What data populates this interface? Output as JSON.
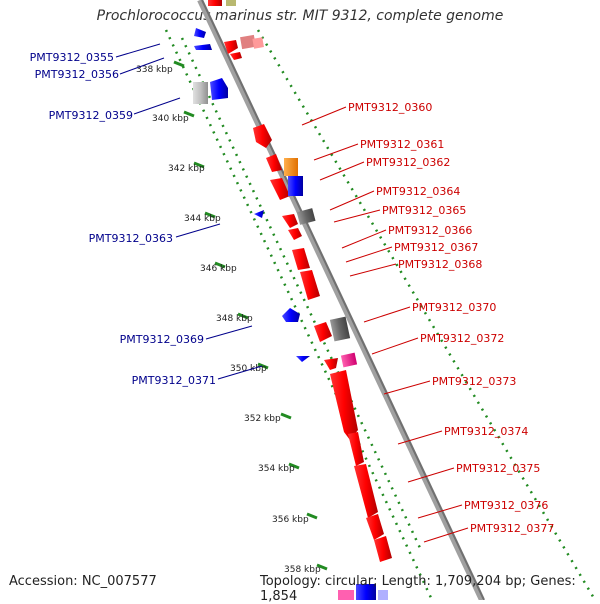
{
  "title": "Prochlorococcus marinus str. MIT 9312, complete genome",
  "footer": {
    "accession": "Accession: NC_007577",
    "summary": "Topology: circular; Length: 1,709,204 bp; Genes: 1,854"
  },
  "ticks": [
    "338 kbp",
    "340 kbp",
    "342 kbp",
    "344 kbp",
    "346 kbp",
    "348 kbp",
    "350 kbp",
    "352 kbp",
    "354 kbp",
    "356 kbp",
    "358 kbp"
  ],
  "left_labels": [
    "PMT9312_0355",
    "PMT9312_0356",
    "PMT9312_0359",
    "PMT9312_0363",
    "PMT9312_0369",
    "PMT9312_0371"
  ],
  "right_labels": [
    "PMT9312_0360",
    "PMT9312_0361",
    "PMT9312_0362",
    "PMT9312_0364",
    "PMT9312_0365",
    "PMT9312_0366",
    "PMT9312_0367",
    "PMT9312_0368",
    "PMT9312_0370",
    "PMT9312_0372",
    "PMT9312_0373",
    "PMT9312_0374",
    "PMT9312_0375",
    "PMT9312_0376",
    "PMT9312_0377"
  ],
  "colors": {
    "forward": "#ff0000",
    "reverse": "#0000ff",
    "backbone": "#888888",
    "tick_track": "#228b22",
    "label_left": "#00008b",
    "label_right": "#cc0000",
    "orange": "#ff8c00",
    "magenta": "#ff1493",
    "darkgray": "#666666",
    "lightgray": "#c0c0c0",
    "pink": "#ff8080"
  }
}
